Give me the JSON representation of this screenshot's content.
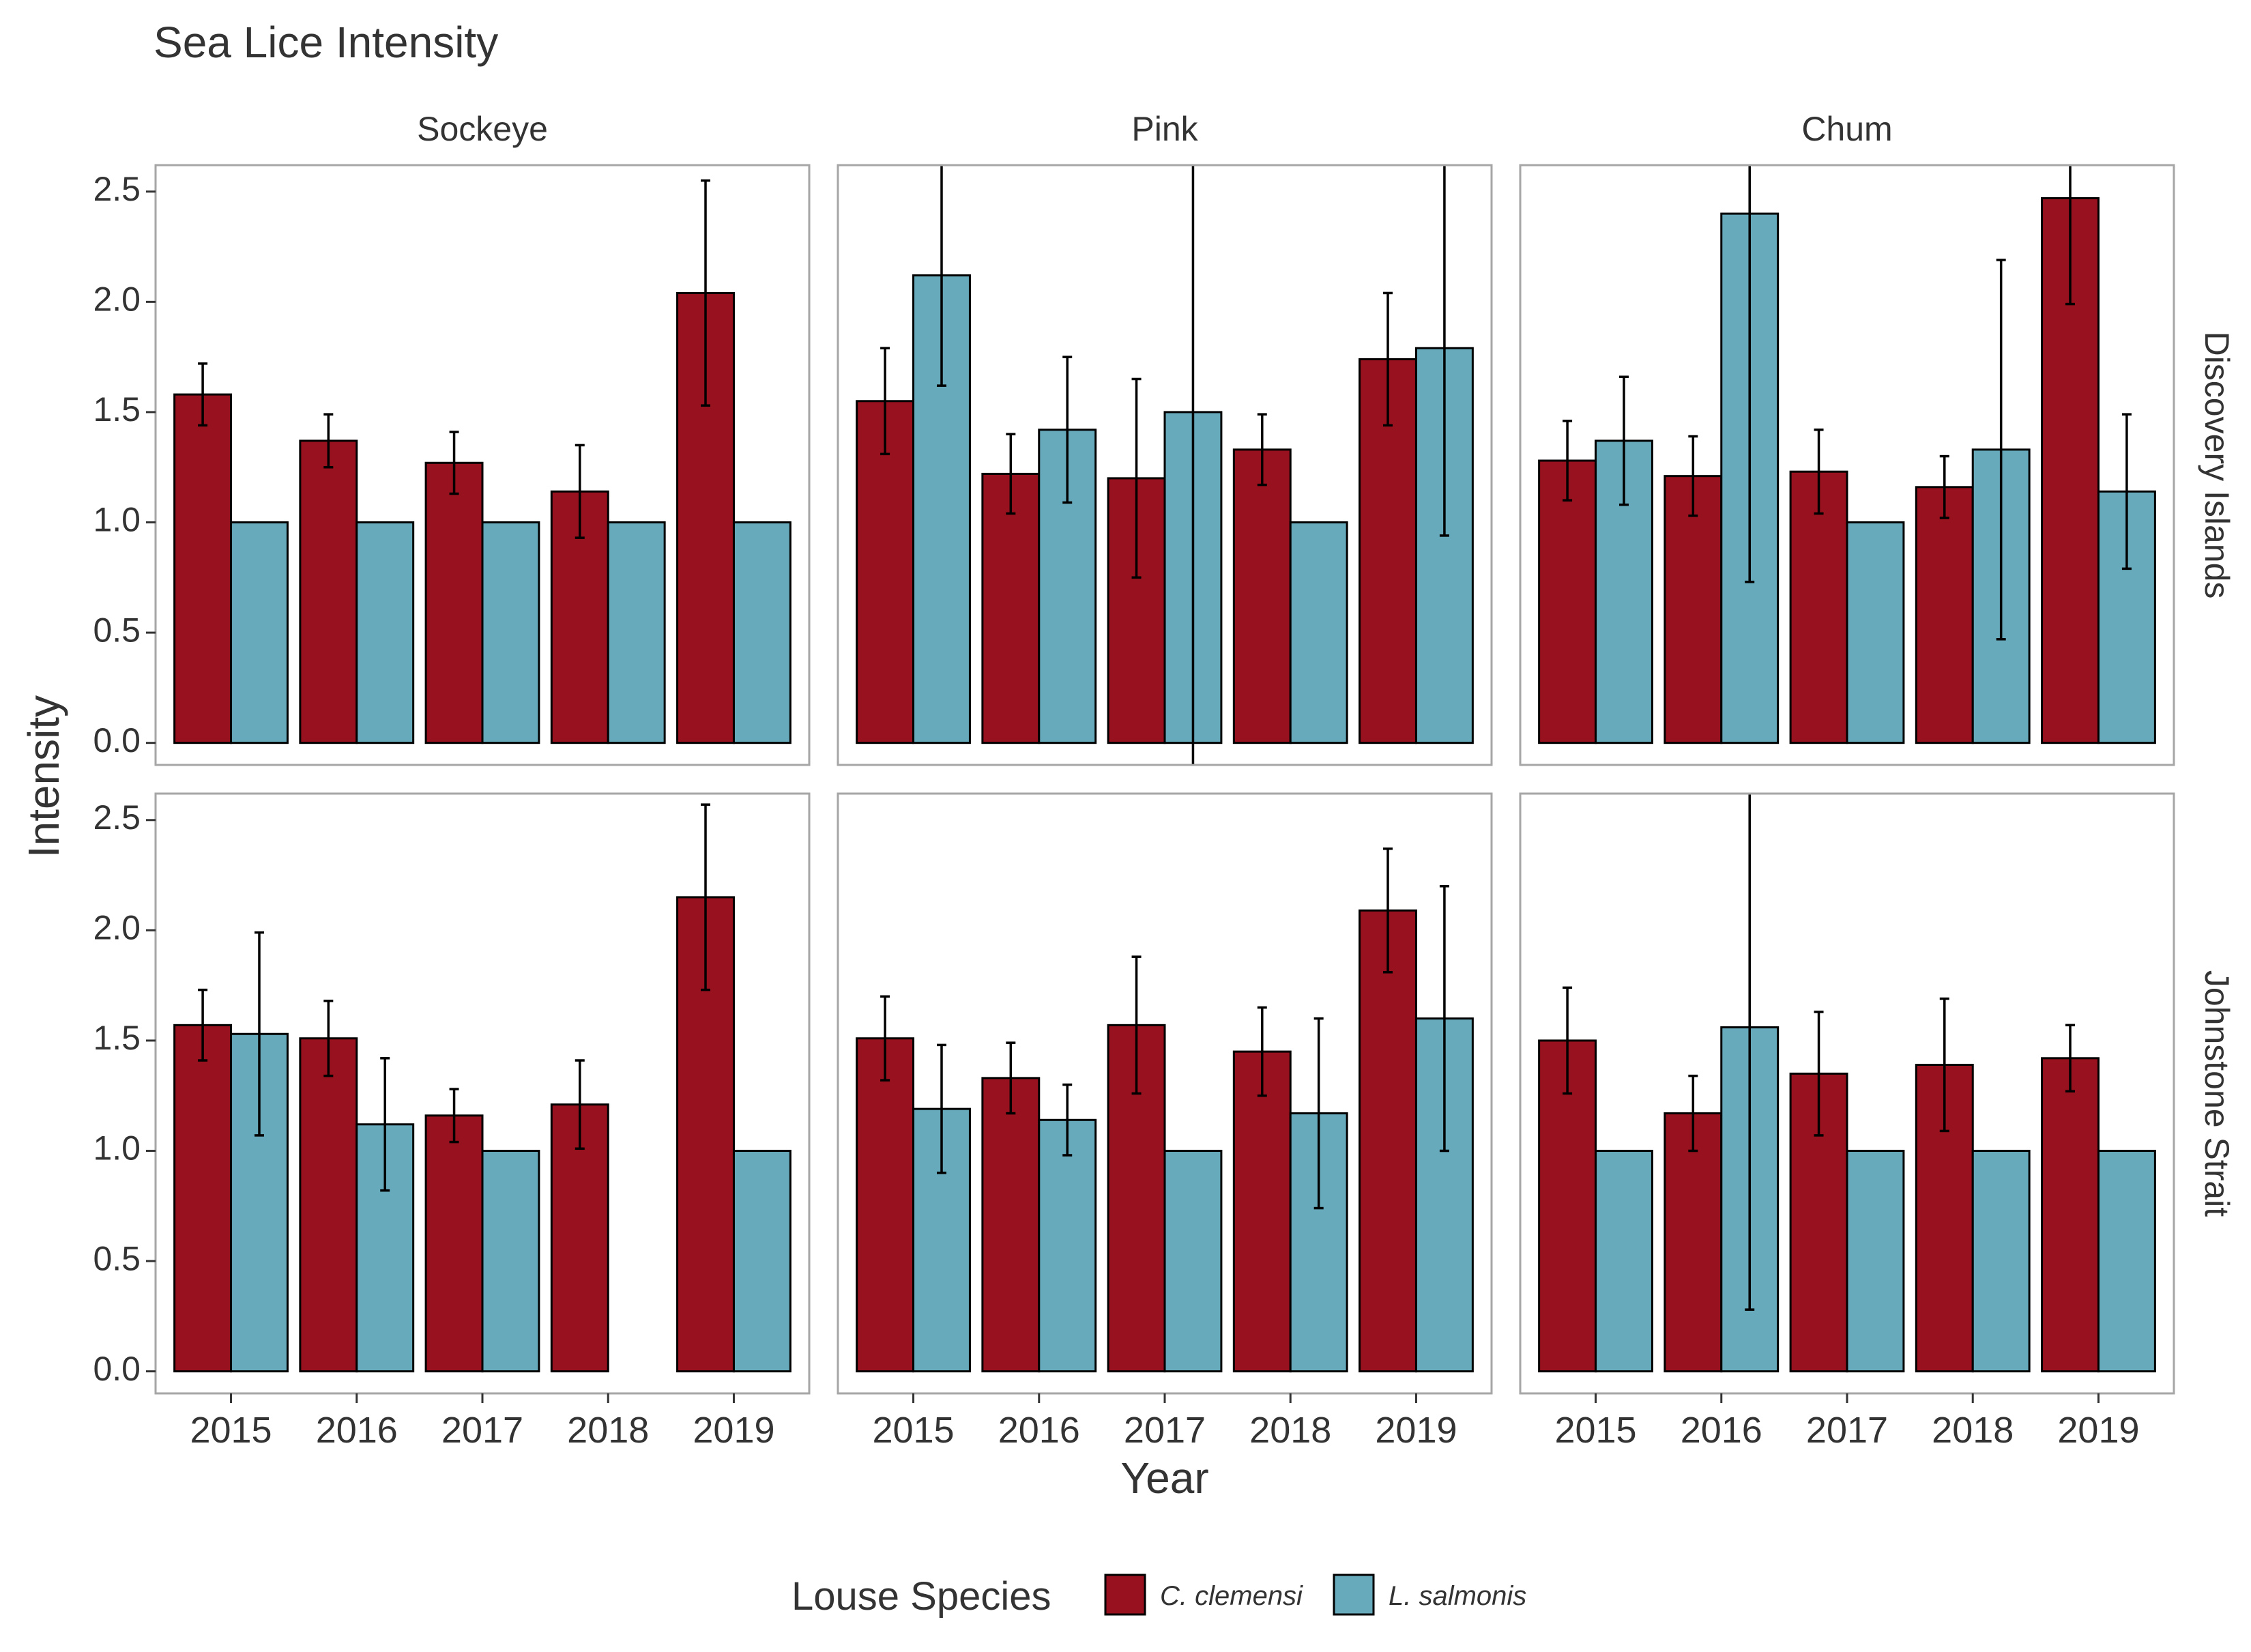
{
  "chart_data": {
    "type": "bar",
    "title": "Sea Lice Intensity",
    "xlabel": "Year",
    "ylabel": "Intensity",
    "ylim": [
      -0.1,
      2.62
    ],
    "yticks": [
      "0.0",
      "0.5",
      "1.0",
      "1.5",
      "2.0",
      "2.5"
    ],
    "categories": [
      "2015",
      "2016",
      "2017",
      "2018",
      "2019"
    ],
    "columns": [
      "Sockeye",
      "Pink",
      "Chum"
    ],
    "rows": [
      "Discovery Islands",
      "Johnstone Strait"
    ],
    "grid": false,
    "legend": {
      "title": "Louse Species",
      "position": "bottom",
      "entries": [
        {
          "label": "C. clemensi",
          "color": "#98111e"
        },
        {
          "label": "L. salmonis",
          "color": "#67aabb"
        }
      ]
    },
    "panels": [
      {
        "row": "Discovery Islands",
        "column": "Sockeye",
        "series": [
          {
            "name": "C. clemensi",
            "values": [
              1.58,
              1.37,
              1.27,
              1.14,
              2.04
            ],
            "err_low": [
              1.44,
              1.25,
              1.13,
              0.93,
              1.53
            ],
            "err_high": [
              1.72,
              1.49,
              1.41,
              1.35,
              2.55
            ]
          },
          {
            "name": "L. salmonis",
            "values": [
              1.0,
              1.0,
              1.0,
              1.0,
              1.0
            ],
            "err_low": [
              null,
              null,
              null,
              null,
              null
            ],
            "err_high": [
              null,
              null,
              null,
              null,
              null
            ]
          }
        ]
      },
      {
        "row": "Discovery Islands",
        "column": "Pink",
        "series": [
          {
            "name": "C. clemensi",
            "values": [
              1.55,
              1.22,
              1.2,
              1.33,
              1.74
            ],
            "err_low": [
              1.31,
              1.04,
              0.75,
              1.17,
              1.44
            ],
            "err_high": [
              1.79,
              1.4,
              1.65,
              1.49,
              2.04
            ]
          },
          {
            "name": "L. salmonis",
            "values": [
              2.12,
              1.42,
              1.5,
              1.0,
              1.79
            ],
            "err_low": [
              1.62,
              1.09,
              -0.1,
              null,
              0.94
            ],
            "err_high": [
              2.62,
              1.75,
              2.62,
              null,
              2.62
            ]
          }
        ]
      },
      {
        "row": "Discovery Islands",
        "column": "Chum",
        "series": [
          {
            "name": "C. clemensi",
            "values": [
              1.28,
              1.21,
              1.23,
              1.16,
              2.47
            ],
            "err_low": [
              1.1,
              1.03,
              1.04,
              1.02,
              1.99
            ],
            "err_high": [
              1.46,
              1.39,
              1.42,
              1.3,
              2.62
            ]
          },
          {
            "name": "L. salmonis",
            "values": [
              1.37,
              2.4,
              1.0,
              1.33,
              1.14
            ],
            "err_low": [
              1.08,
              0.73,
              null,
              0.47,
              0.79
            ],
            "err_high": [
              1.66,
              2.62,
              null,
              2.19,
              1.49
            ]
          }
        ]
      },
      {
        "row": "Johnstone Strait",
        "column": "Sockeye",
        "series": [
          {
            "name": "C. clemensi",
            "values": [
              1.57,
              1.51,
              1.16,
              1.21,
              2.15
            ],
            "err_low": [
              1.41,
              1.34,
              1.04,
              1.01,
              1.73
            ],
            "err_high": [
              1.73,
              1.68,
              1.28,
              1.41,
              2.57
            ]
          },
          {
            "name": "L. salmonis",
            "values": [
              1.53,
              1.12,
              1.0,
              null,
              1.0
            ],
            "err_low": [
              1.07,
              0.82,
              null,
              null,
              null
            ],
            "err_high": [
              1.99,
              1.42,
              null,
              null,
              null
            ]
          }
        ]
      },
      {
        "row": "Johnstone Strait",
        "column": "Pink",
        "series": [
          {
            "name": "C. clemensi",
            "values": [
              1.51,
              1.33,
              1.57,
              1.45,
              2.09
            ],
            "err_low": [
              1.32,
              1.17,
              1.26,
              1.25,
              1.81
            ],
            "err_high": [
              1.7,
              1.49,
              1.88,
              1.65,
              2.37
            ]
          },
          {
            "name": "L. salmonis",
            "values": [
              1.19,
              1.14,
              1.0,
              1.17,
              1.6
            ],
            "err_low": [
              0.9,
              0.98,
              null,
              0.74,
              1.0
            ],
            "err_high": [
              1.48,
              1.3,
              null,
              1.6,
              2.2
            ]
          }
        ]
      },
      {
        "row": "Johnstone Strait",
        "column": "Chum",
        "series": [
          {
            "name": "C. clemensi",
            "values": [
              1.5,
              1.17,
              1.35,
              1.39,
              1.42
            ],
            "err_low": [
              1.26,
              1.0,
              1.07,
              1.09,
              1.27
            ],
            "err_high": [
              1.74,
              1.34,
              1.63,
              1.69,
              1.57
            ]
          },
          {
            "name": "L. salmonis",
            "values": [
              1.0,
              1.56,
              1.0,
              1.0,
              1.0
            ],
            "err_low": [
              null,
              0.28,
              null,
              null,
              null
            ],
            "err_high": [
              null,
              2.62,
              null,
              null,
              null
            ]
          }
        ]
      }
    ]
  }
}
